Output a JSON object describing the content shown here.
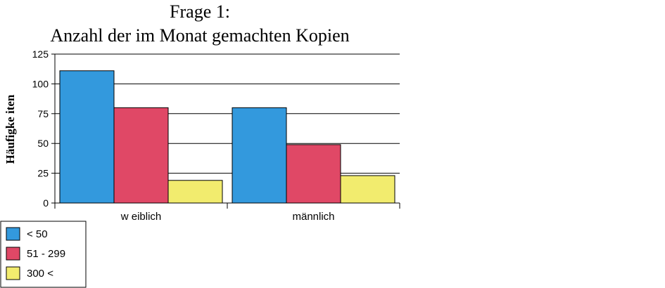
{
  "chart_data": {
    "type": "bar",
    "title_lines": [
      "Frage 1:",
      "Anzahl der im Monat gemachten Kopien"
    ],
    "ylabel": "Häufigke iten",
    "xlabel": "",
    "ylim": [
      0,
      125
    ],
    "yticks": [
      0,
      25,
      50,
      75,
      100,
      125
    ],
    "categories": [
      "w eiblich",
      "männlich"
    ],
    "series": [
      {
        "name": "< 50",
        "color": "#3399DD",
        "values": [
          111,
          80
        ]
      },
      {
        "name": "51 - 299",
        "color": "#E04866",
        "values": [
          80,
          49
        ]
      },
      {
        "name": "300 <",
        "color": "#F2EC6E",
        "values": [
          19,
          23
        ]
      }
    ],
    "grid": true,
    "legend_position": "bottom-left"
  }
}
